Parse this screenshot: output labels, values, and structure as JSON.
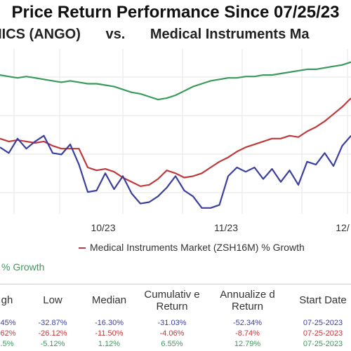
{
  "chart_data": {
    "type": "line",
    "title": "Price Return Performance Since 07/25/23",
    "subtitle_left": "MICS (ANGO)",
    "subtitle_vs": "vs.",
    "subtitle_right": "Medical Instruments Ma",
    "x_tick_labels": [
      "10/23",
      "11/23",
      "12/"
    ],
    "legend": [
      {
        "name": "Medical Instruments Market (ZSH16M) % Growth",
        "color": "#c0393b"
      },
      {
        "name": "% Growth",
        "color": "#3a9a5b"
      }
    ],
    "colors": {
      "green": "#3a9a5b",
      "red": "#c0393b",
      "blue": "#3b3f9e",
      "grid": "#e6e6e6"
    },
    "series": [
      {
        "name": "",
        "color": "#3a9a5b",
        "values": [
          84,
          83,
          82,
          83,
          82,
          81,
          80,
          79,
          80,
          79,
          78,
          78,
          77,
          76,
          74,
          72,
          71,
          69,
          67,
          68,
          70,
          73,
          76,
          78,
          80,
          81,
          82,
          82,
          83,
          83,
          84,
          84,
          85,
          86,
          87,
          88,
          88,
          89,
          90,
          91,
          93
        ]
      },
      {
        "name": "",
        "color": "#c0393b",
        "values": [
          40,
          38,
          39,
          38,
          37,
          38,
          35,
          33,
          33,
          33,
          20,
          18,
          19,
          17,
          13,
          10,
          7,
          8,
          12,
          18,
          16,
          13,
          14,
          16,
          20,
          24,
          27,
          31,
          34,
          36,
          38,
          40,
          40,
          42,
          41,
          45,
          48,
          52,
          57,
          62,
          68
        ]
      },
      {
        "name": "",
        "color": "#3b3f9e",
        "values": [
          34,
          30,
          40,
          33,
          38,
          42,
          30,
          29,
          36,
          22,
          3,
          4,
          16,
          5,
          14,
          2,
          -5,
          -4,
          0,
          6,
          14,
          4,
          0,
          -8,
          -8,
          -6,
          14,
          20,
          17,
          20,
          12,
          19,
          10,
          18,
          8,
          24,
          22,
          30,
          21,
          35,
          42
        ]
      }
    ],
    "ylim": [
      -12,
      102
    ]
  },
  "table": {
    "headers": [
      "gh",
      "Low",
      "Median",
      "Cumulativ e Return",
      "Annualize d Return",
      "Start Date"
    ],
    "rows": [
      [
        ".45%",
        "-32.87%",
        "-16.30%",
        "-31.03%",
        "-52.34%",
        "07-25-2023"
      ],
      [
        ".62%",
        "-26.12%",
        "-11.50%",
        "-4.06%",
        "-8.74%",
        "07-25-2023"
      ],
      [
        ".5%",
        "-5.12%",
        "1.12%",
        "6.55%",
        "12.79%",
        "07-25-2023"
      ]
    ],
    "row_colors": [
      "#3b3f9e",
      "#c0393b",
      "#3a9a5b"
    ]
  }
}
